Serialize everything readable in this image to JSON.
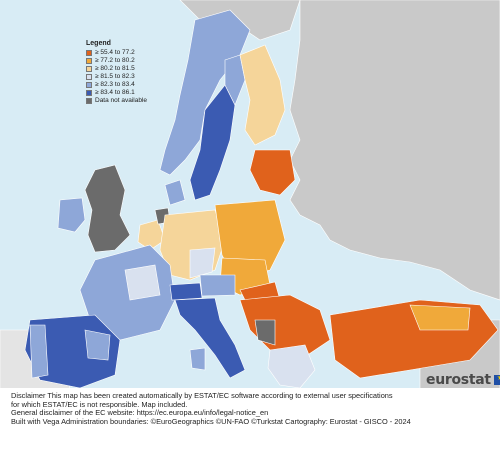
{
  "legend": {
    "title": "Legend",
    "items": [
      {
        "label": "≥ 55.4 to 77.2",
        "color": "#e0621c"
      },
      {
        "label": "≥ 77.2 to 80.2",
        "color": "#f0a93a"
      },
      {
        "label": "≥ 80.2 to 81.5",
        "color": "#f5d59a"
      },
      {
        "label": "≥ 81.5 to 82.3",
        "color": "#d9e1ef"
      },
      {
        "label": "≥ 82.3 to 83.4",
        "color": "#8ea7d8"
      },
      {
        "label": "≥ 83.4 to 86.1",
        "color": "#3b5bb2"
      },
      {
        "label": "Data not available",
        "color": "#6b6b6b"
      }
    ]
  },
  "colors": {
    "sea": "#d8ecf5",
    "non_eu_land": "#c9c9c9",
    "border": "#ffffff"
  },
  "logo": {
    "text": "eurostat",
    "icon": "eu-flag-icon"
  },
  "disclaimer": {
    "line1": "Disclaimer This map has been created automatically by ESTAT/EC software according to external user specifications",
    "line2": "for which ESTAT/EC is not responsible. Map included.",
    "line3": "General disclaimer of the EC website: https://ec.europa.eu/info/legal-notice_en",
    "line4": "Built with Vega Administration boundaries: ©EuroGeographics ©UN-FAO ©Turkstat Cartography: Eurostat - GISCO - 2024"
  }
}
